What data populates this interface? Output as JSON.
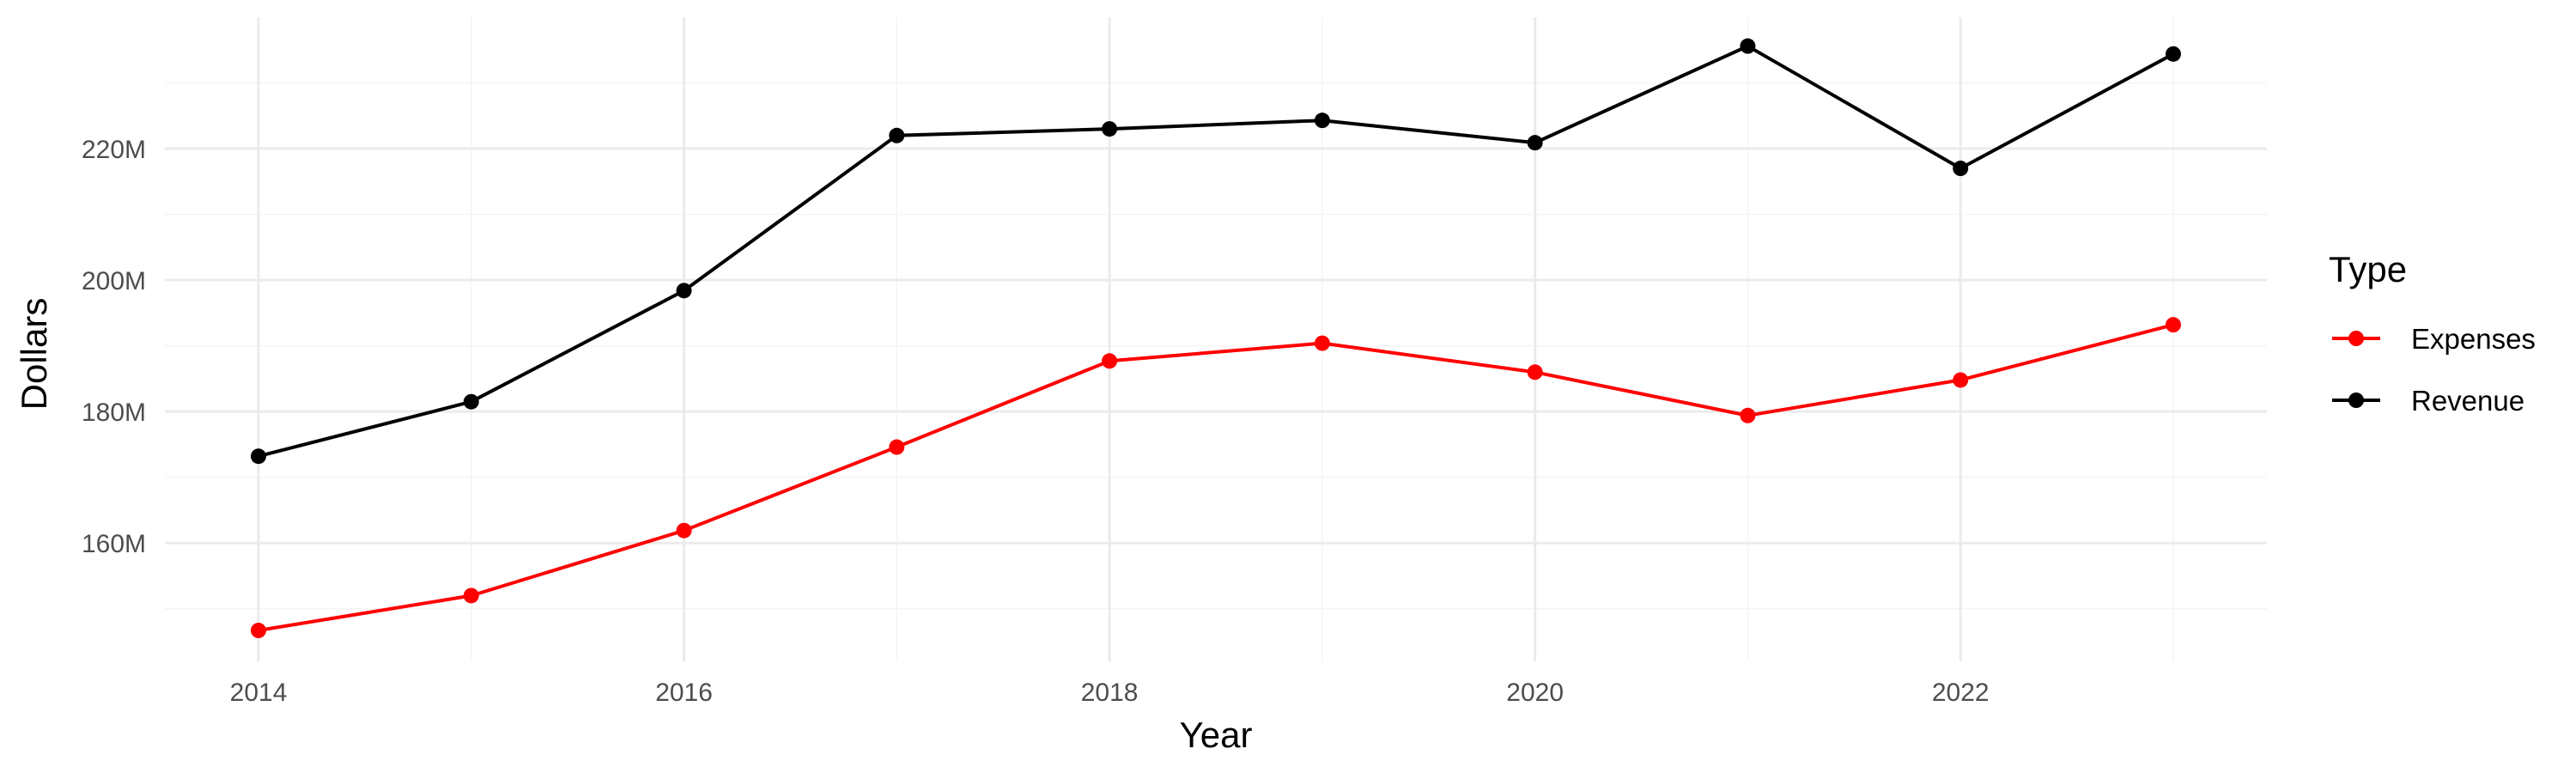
{
  "chart_data": {
    "type": "line",
    "title": "",
    "xlabel": "Year",
    "ylabel": "Dollars",
    "x": [
      2014,
      2015,
      2016,
      2017,
      2018,
      2019,
      2020,
      2021,
      2022,
      2023
    ],
    "x_ticks": [
      2014,
      2016,
      2018,
      2020,
      2022
    ],
    "x_tick_labels": [
      "2014",
      "2016",
      "2018",
      "2020",
      "2022"
    ],
    "xlim": [
      2013.56,
      2023.44
    ],
    "y_ticks": [
      160000000,
      180000000,
      200000000,
      220000000
    ],
    "y_tick_labels": [
      "160M",
      "180M",
      "200M",
      "220M"
    ],
    "ylim": [
      142000000,
      240000000
    ],
    "grid": true,
    "legend": {
      "title": "Type",
      "placement": "right",
      "entries": [
        "Expenses",
        "Revenue"
      ]
    },
    "series": [
      {
        "name": "Expenses",
        "color": "#ff0000",
        "values": [
          146700000,
          152000000,
          161900000,
          174600000,
          187700000,
          190400000,
          186000000,
          179400000,
          184800000,
          193200000
        ]
      },
      {
        "name": "Revenue",
        "color": "#000000",
        "values": [
          173200000,
          181500000,
          198400000,
          222000000,
          223000000,
          224300000,
          220900000,
          235600000,
          217000000,
          234400000
        ]
      }
    ]
  }
}
